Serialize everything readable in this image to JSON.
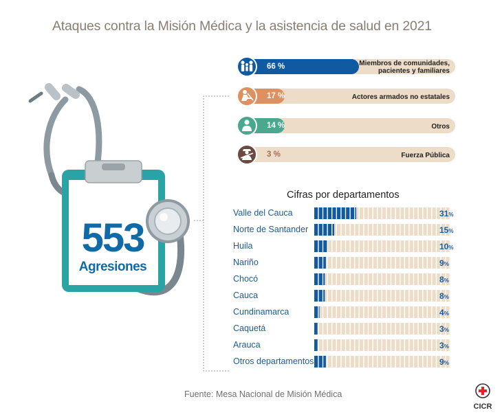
{
  "title": "Ataques contra la Misión Médica y la asistencia de salud en 2021",
  "source": "Fuente: Mesa Nacional de Misión Médica",
  "logo_label": "CICR",
  "total": {
    "value": "553",
    "label": "Agresiones"
  },
  "chart_data": [
    {
      "type": "bar",
      "categories": [
        "Miembros de comunidades, pacientes y familiares",
        "Actores armados no estatales",
        "Otros",
        "Fuerza Pública"
      ],
      "values": [
        66,
        17,
        14,
        3
      ],
      "value_labels": [
        "66 %",
        "17 %",
        "14 %",
        "3 %"
      ],
      "colors": [
        "#0f5aa0",
        "#dd9160",
        "#4aa88e",
        "#6b4a42"
      ],
      "icons": [
        "family-icon",
        "armed-actor-icon",
        "person-icon",
        "soldier-icon"
      ],
      "xlim": [
        0,
        100
      ],
      "label_lines": [
        [
          "Miembros de comunidades,",
          "pacientes y familiares"
        ],
        [
          "Actores armados no estatales"
        ],
        [
          "Otros"
        ],
        [
          "Fuerza Pública"
        ]
      ]
    },
    {
      "type": "bar",
      "title": "Cifras por departamentos",
      "categories": [
        "Valle del Cauca",
        "Norte de Santander",
        "Huila",
        "Nariño",
        "Chocó",
        "Cauca",
        "Cundinamarca",
        "Caquetá",
        "Arauca",
        "Otros departamentos"
      ],
      "values": [
        31,
        15,
        10,
        9,
        8,
        8,
        4,
        3,
        3,
        9
      ],
      "unit": "%",
      "xlim": [
        0,
        100
      ],
      "bar_color": "#0f5aa0",
      "track_color": "#ecdcc8"
    }
  ]
}
